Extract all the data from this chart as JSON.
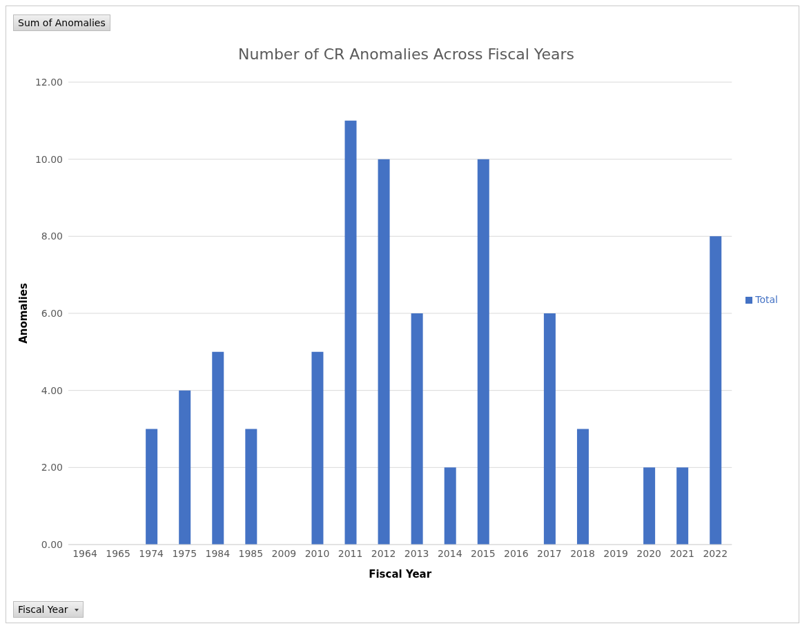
{
  "chart_data": {
    "type": "bar",
    "title": "Number of CR Anomalies Across Fiscal Years",
    "xlabel": "Fiscal Year",
    "ylabel": "Anomalies",
    "categories": [
      "1964",
      "1965",
      "1974",
      "1975",
      "1984",
      "1985",
      "2009",
      "2010",
      "2011",
      "2012",
      "2013",
      "2014",
      "2015",
      "2016",
      "2017",
      "2018",
      "2019",
      "2020",
      "2021",
      "2022"
    ],
    "series": [
      {
        "name": "Total",
        "color": "#4472c4",
        "values": [
          0,
          0,
          3,
          4,
          5,
          3,
          0,
          5,
          11,
          10,
          6,
          2,
          10,
          0,
          6,
          3,
          0,
          2,
          2,
          8
        ]
      }
    ],
    "ylim": [
      0,
      12
    ],
    "yticks": [
      {
        "value": 0,
        "label": "0.00"
      },
      {
        "value": 2,
        "label": "2.00"
      },
      {
        "value": 4,
        "label": "4.00"
      },
      {
        "value": 6,
        "label": "6.00"
      },
      {
        "value": 8,
        "label": "8.00"
      },
      {
        "value": 10,
        "label": "10.00"
      },
      {
        "value": 12,
        "label": "12.00"
      }
    ],
    "grid": "y",
    "legend": "right",
    "annotations": [
      "Sum of Anomalies",
      "Fiscal Year"
    ]
  }
}
